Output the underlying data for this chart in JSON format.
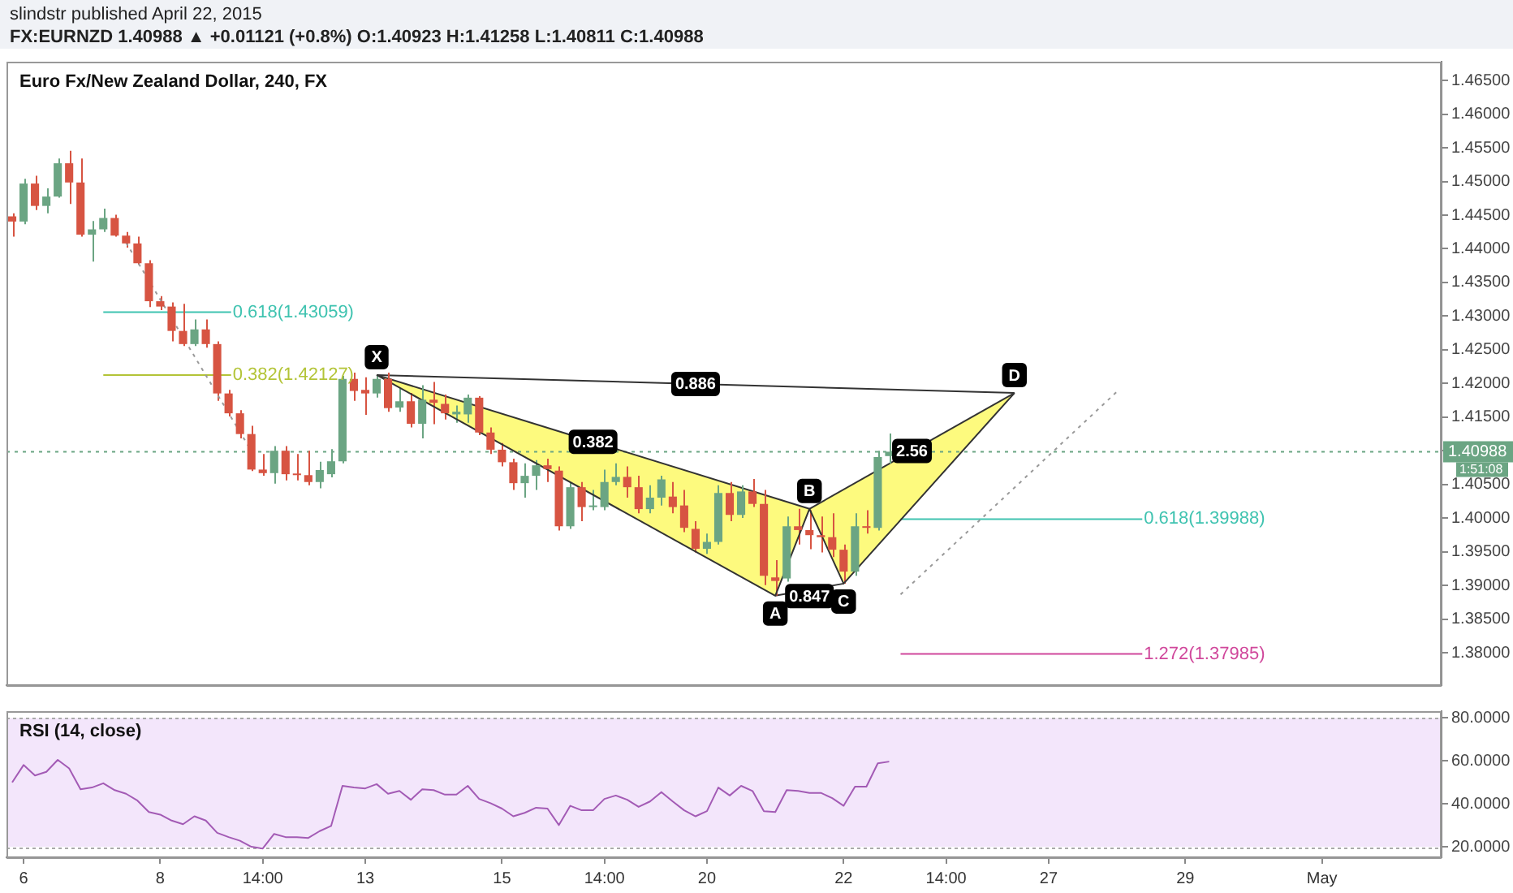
{
  "chart_data": [
    {
      "type": "candlestick",
      "title": "Euro Fx/New Zealand Dollar, 240, FX",
      "subtitle": "FX:EURNZD 1.40988 ▲ +0.01121 (+0.8%) O:1.40923 H:1.41258 L:1.40811 C:1.40988",
      "annotations": [
        "slindstr published April 22, 2015",
        "1:51:08",
        {
          "text": "X",
          "y": 1.42127
        },
        {
          "text": "A",
          "y": 1.3885
        },
        {
          "text": "B",
          "y": 1.4014
        },
        {
          "text": "C",
          "y": 1.3903
        },
        {
          "text": "D",
          "y": 1.4186
        },
        "0.886",
        "0.382",
        "0.847",
        "2.56"
      ],
      "categories": [
        null,
        null,
        null,
        null,
        null,
        null,
        null,
        null,
        null,
        null,
        null,
        null,
        null,
        null,
        null,
        null,
        null,
        null,
        null,
        null,
        null,
        null,
        null,
        null,
        null,
        null,
        null,
        null,
        null,
        null,
        null,
        null,
        null,
        null,
        null,
        null,
        null,
        null,
        null,
        null,
        null,
        null,
        null,
        null,
        null,
        null,
        null,
        null,
        null,
        null,
        null,
        null,
        null,
        null,
        null,
        null,
        null,
        null,
        null,
        null,
        null,
        null,
        null,
        null,
        null,
        null,
        null,
        null,
        null,
        null,
        null,
        null,
        null,
        null,
        null,
        null,
        null,
        null,
        null,
        null,
        null,
        null,
        null,
        null,
        null,
        null,
        null,
        null,
        null,
        null,
        null,
        null,
        null,
        null,
        null,
        null,
        null,
        null,
        null,
        null,
        null,
        null,
        null,
        null,
        null,
        null,
        null,
        null,
        null,
        null,
        null,
        null,
        null,
        null,
        null,
        null,
        null,
        null,
        null,
        null,
        null,
        null,
        null,
        null,
        null,
        null
      ],
      "ohlc": [
        [
          1.44482,
          1.44528,
          1.4418,
          1.44405
        ],
        [
          1.44405,
          1.45038,
          1.44366,
          1.44969
        ],
        [
          1.44969,
          1.45085,
          1.44574,
          1.44637
        ],
        [
          1.44637,
          1.44899,
          1.44528,
          1.44776
        ],
        [
          1.44776,
          1.4534,
          1.4476,
          1.4527
        ],
        [
          1.4527,
          1.45456,
          1.44667,
          1.44985
        ],
        [
          1.44985,
          1.4534,
          1.4418,
          1.4421
        ],
        [
          1.4421,
          1.44412,
          1.43809,
          1.44289
        ],
        [
          1.44289,
          1.44598,
          1.4425,
          1.44458
        ],
        [
          1.44458,
          1.44505,
          1.4418,
          1.44196
        ],
        [
          1.44196,
          1.4425,
          1.44018,
          1.4408
        ],
        [
          1.4408,
          1.4418,
          1.43762,
          1.43786
        ],
        [
          1.43786,
          1.43832,
          1.43136,
          1.43222
        ],
        [
          1.43222,
          1.43298,
          1.4309,
          1.43143
        ],
        [
          1.43143,
          1.43206,
          1.42626,
          1.42781
        ],
        [
          1.42781,
          1.43182,
          1.42556,
          1.42586
        ],
        [
          1.42586,
          1.4295,
          1.42556,
          1.42804
        ],
        [
          1.42804,
          1.4295,
          1.42533,
          1.42586
        ],
        [
          1.42586,
          1.42626,
          1.41744,
          1.41853
        ],
        [
          1.41853,
          1.41906,
          1.41512,
          1.41558
        ],
        [
          1.41558,
          1.41605,
          1.41187,
          1.4125
        ],
        [
          1.4125,
          1.41373,
          1.407,
          1.40723
        ],
        [
          1.40723,
          1.40955,
          1.4063,
          1.4067
        ],
        [
          1.4067,
          1.41071,
          1.40514,
          1.41002
        ],
        [
          1.41002,
          1.41071,
          1.40561,
          1.40654
        ],
        [
          1.40654,
          1.40955,
          1.40561,
          1.4064
        ],
        [
          1.4064,
          1.41002,
          1.40491,
          1.40538
        ],
        [
          1.40538,
          1.40839,
          1.40445,
          1.40716
        ],
        [
          1.40654,
          1.41025,
          1.40607,
          1.40846
        ],
        [
          1.40846,
          1.42115,
          1.40816,
          1.42069
        ],
        [
          1.42069,
          1.42162,
          1.41744,
          1.4189
        ],
        [
          1.41906,
          1.42092,
          1.41535,
          1.41853
        ],
        [
          1.41853,
          1.42127,
          1.4179,
          1.42069
        ],
        [
          1.42069,
          1.42162,
          1.41582,
          1.41635
        ],
        [
          1.41644,
          1.4193,
          1.41582,
          1.41737
        ],
        [
          1.41737,
          1.4186,
          1.4135,
          1.41403
        ],
        [
          1.41403,
          1.41976,
          1.41187,
          1.4176
        ],
        [
          1.4176,
          1.42022,
          1.41396,
          1.41714
        ],
        [
          1.41698,
          1.41837,
          1.41466,
          1.41558
        ],
        [
          1.41542,
          1.41674,
          1.41419,
          1.41582
        ],
        [
          1.41542,
          1.41837,
          1.41419,
          1.4179
        ],
        [
          1.4179,
          1.41814,
          1.41234,
          1.41273
        ],
        [
          1.41273,
          1.4135,
          1.40955,
          1.41018
        ],
        [
          1.41018,
          1.41118,
          1.4077,
          1.40832
        ],
        [
          1.40832,
          1.40886,
          1.40422,
          1.40521
        ],
        [
          1.40521,
          1.40816,
          1.40306,
          1.4063
        ],
        [
          1.4063,
          1.40862,
          1.40422,
          1.40786
        ],
        [
          1.40786,
          1.40886,
          1.40538,
          1.4073
        ],
        [
          1.40707,
          1.4077,
          1.39818,
          1.39881
        ],
        [
          1.39881,
          1.40538,
          1.39842,
          1.40461
        ],
        [
          1.40461,
          1.40538,
          1.39958,
          1.40166
        ],
        [
          1.40166,
          1.40422,
          1.4012,
          1.4017
        ],
        [
          1.40166,
          1.40723,
          1.4012,
          1.40538
        ],
        [
          1.40538,
          1.40816,
          1.40491,
          1.40614
        ],
        [
          1.40614,
          1.4077,
          1.40306,
          1.40461
        ],
        [
          1.40461,
          1.4063,
          1.40074,
          1.40136
        ],
        [
          1.40136,
          1.40491,
          1.40074,
          1.40306
        ],
        [
          1.40306,
          1.4063,
          1.4019,
          1.40577
        ],
        [
          1.40322,
          1.40538,
          1.40074,
          1.40166
        ],
        [
          1.4019,
          1.40422,
          1.39795,
          1.39858
        ],
        [
          1.39842,
          1.39958,
          1.39494,
          1.39547
        ],
        [
          1.39547,
          1.39772,
          1.3947,
          1.39649
        ],
        [
          1.39649,
          1.40491,
          1.3961,
          1.40375
        ],
        [
          1.40375,
          1.40538,
          1.39958,
          1.4005
        ],
        [
          1.4005,
          1.40491,
          1.40004,
          1.40398
        ],
        [
          1.40398,
          1.40584,
          1.40166,
          1.40213
        ],
        [
          1.40213,
          1.40422,
          1.39006,
          1.39146
        ],
        [
          1.39122,
          1.39378,
          1.3885,
          1.39069
        ],
        [
          1.39106,
          1.40027,
          1.3906,
          1.39881
        ],
        [
          1.39881,
          1.4014,
          1.3961,
          1.39825
        ],
        [
          1.39825,
          1.4012,
          1.3954,
          1.39749
        ],
        [
          1.39749,
          1.40027,
          1.39494,
          1.39719
        ],
        [
          1.39719,
          1.40074,
          1.39424,
          1.39533
        ],
        [
          1.39533,
          1.3961,
          1.3903,
          1.39208
        ],
        [
          1.39208,
          1.40074,
          1.39146,
          1.39881
        ],
        [
          1.39881,
          1.4012,
          1.39772,
          1.39858
        ],
        [
          1.39858,
          1.41002,
          1.39818,
          1.40909
        ],
        [
          1.40923,
          1.41258,
          1.40811,
          1.40988
        ],
        null,
        null,
        null,
        null,
        null,
        null,
        null,
        null,
        null,
        null,
        null,
        null,
        null,
        null,
        null,
        null,
        null,
        null,
        null,
        null,
        null,
        null,
        null,
        null,
        null,
        null,
        null,
        null,
        null,
        null,
        null,
        null,
        null,
        null,
        null,
        null,
        null,
        null,
        null,
        null,
        null,
        null,
        null,
        null,
        null,
        null,
        null,
        null
      ],
      "colors": [
        "#d75442",
        "#6ba583",
        "#d75442",
        "#6ba583",
        "#6ba583",
        "#d75442",
        "#d75442",
        "#6ba583",
        "#6ba583",
        "#d75442",
        "#d75442",
        "#d75442",
        "#d75442",
        "#d75442",
        "#d75442",
        "#d75442",
        "#6ba583",
        "#d75442",
        "#d75442",
        "#d75442",
        "#d75442",
        "#d75442",
        "#d75442",
        "#6ba583",
        "#d75442",
        "#d75442",
        "#d75442",
        "#6ba583",
        "#6ba583",
        "#6ba583",
        "#d75442",
        "#d75442",
        "#6ba583",
        "#d75442",
        "#6ba583",
        "#d75442",
        "#6ba583",
        "#d75442",
        "#d75442",
        "#6ba583",
        "#6ba583",
        "#d75442",
        "#d75442",
        "#d75442",
        "#d75442",
        "#6ba583",
        "#6ba583",
        "#d75442",
        "#d75442",
        "#6ba583",
        "#d75442",
        "#6ba583",
        "#6ba583",
        "#6ba583",
        "#d75442",
        "#d75442",
        "#6ba583",
        "#6ba583",
        "#d75442",
        "#d75442",
        "#d75442",
        "#6ba583",
        "#6ba583",
        "#d75442",
        "#6ba583",
        "#d75442",
        "#d75442",
        "#d75442",
        "#6ba583",
        "#d75442",
        "#d75442",
        "#d75442",
        "#d75442",
        "#d75442",
        "#6ba583",
        "#d75442",
        "#6ba583",
        "#6ba583",
        null,
        null,
        null,
        null,
        null,
        null,
        null,
        null,
        null,
        null,
        null,
        null,
        null,
        null,
        null,
        null,
        null,
        null,
        null,
        null,
        null,
        null,
        null,
        null,
        null,
        null,
        null,
        null,
        null,
        null,
        null,
        null,
        null,
        null,
        null,
        null,
        null,
        null,
        null,
        null,
        null,
        null,
        null,
        null,
        null,
        null,
        null,
        null
      ],
      "series": [
        {
          "type": "line",
          "color": "#333333",
          "values": [
            null,
            null,
            null,
            null,
            null,
            null,
            null,
            null,
            null,
            null,
            null,
            null,
            null,
            null,
            null,
            null,
            null,
            null,
            null,
            null,
            null,
            null,
            null,
            null,
            null,
            null,
            null,
            null,
            null,
            null,
            null,
            null,
            1.42127,
            null,
            null,
            null,
            null,
            null,
            null,
            null,
            null,
            null,
            null,
            null,
            null,
            null,
            null,
            null,
            null,
            null,
            null,
            null,
            null,
            null,
            null,
            null,
            null,
            null,
            null,
            null,
            null,
            null,
            null,
            null,
            null,
            null,
            null,
            1.3885,
            null,
            null,
            1.4014,
            null,
            null,
            1.3903,
            null,
            null,
            null,
            null,
            null,
            null,
            null,
            null,
            null,
            null,
            null,
            null,
            null,
            null,
            1.4186,
            null,
            null,
            null,
            null,
            null,
            null,
            null,
            null,
            null,
            null,
            null,
            null,
            null,
            null,
            null,
            null,
            null,
            null,
            null,
            null,
            null,
            null,
            null,
            null,
            null,
            null,
            null,
            null,
            null,
            null,
            null,
            null,
            null,
            null,
            null,
            null,
            null
          ]
        },
        {
          "type": "line",
          "color": "#999999",
          "line_style": "dotted",
          "values": [
            null,
            null,
            null,
            null,
            null,
            null,
            null,
            null,
            null,
            null,
            1.4409,
            null,
            null,
            null,
            null,
            null,
            null,
            null,
            null,
            null,
            null,
            1.41,
            null,
            null,
            null,
            null,
            null,
            null,
            null,
            null,
            null,
            null,
            null,
            null,
            null,
            null,
            null,
            null,
            null,
            null,
            null,
            null,
            null,
            null,
            null,
            null,
            null,
            null,
            null,
            null,
            null,
            null,
            null,
            null,
            null,
            null,
            null,
            null,
            null,
            null,
            null,
            null,
            null,
            null,
            null,
            null,
            null,
            null,
            null,
            null,
            null,
            null,
            null,
            null,
            null,
            null,
            null,
            null,
            null,
            null,
            null,
            null,
            null,
            null,
            null,
            null,
            null,
            null,
            null,
            null,
            null,
            null,
            null,
            null,
            null,
            null,
            null,
            null,
            null,
            null,
            null,
            null,
            null,
            null,
            null,
            null,
            null,
            null,
            null,
            null,
            null,
            null,
            null,
            null,
            null,
            null,
            null,
            null,
            null,
            null,
            null,
            null,
            null,
            null,
            null,
            null
          ]
        },
        {
          "type": "line",
          "color": "#999999",
          "line_style": "dotted",
          "values": [
            null,
            null,
            null,
            null,
            null,
            null,
            null,
            null,
            null,
            null,
            null,
            null,
            null,
            null,
            null,
            null,
            null,
            null,
            null,
            null,
            null,
            null,
            null,
            null,
            null,
            null,
            null,
            null,
            null,
            null,
            null,
            null,
            null,
            null,
            null,
            null,
            null,
            null,
            null,
            null,
            null,
            null,
            null,
            null,
            null,
            null,
            null,
            null,
            null,
            null,
            null,
            null,
            null,
            null,
            null,
            null,
            null,
            null,
            null,
            null,
            null,
            null,
            null,
            null,
            null,
            null,
            null,
            null,
            null,
            null,
            null,
            null,
            null,
            null,
            null,
            null,
            null,
            null,
            1.3887,
            null,
            null,
            null,
            null,
            null,
            null,
            null,
            null,
            null,
            null,
            null,
            null,
            null,
            null,
            null,
            null,
            null,
            null,
            1.4188,
            null,
            null,
            null,
            null,
            null,
            null,
            null,
            null,
            null,
            null,
            null,
            null,
            null,
            null,
            null,
            null,
            null,
            null,
            null,
            null,
            null,
            null,
            null,
            null,
            null,
            null,
            null,
            null
          ]
        }
      ],
      "ref_lines": [
        {
          "axis": "y",
          "value": 1.43059,
          "label": "0.618(1.43059)",
          "color": "#3fc3b0"
        },
        {
          "axis": "y",
          "value": 1.42127,
          "label": "0.382(1.42127)",
          "color": "#b3c437"
        },
        {
          "axis": "y",
          "value": 1.39988,
          "label": "0.618(1.39988)",
          "color": "#3fc3b0"
        },
        {
          "axis": "y",
          "value": 1.37985,
          "label": "1.272(1.37985)",
          "color": "#d0479b"
        },
        {
          "axis": "y",
          "value": 1.40988,
          "label": "1.40988",
          "color": "#6ba583",
          "line_style": "dotted"
        }
      ],
      "ylim": [
        1.37522,
        1.46778
      ],
      "yticks": [
        {
          "value": 1.38,
          "label": "1.38000"
        },
        {
          "value": 1.385,
          "label": "1.38500"
        },
        {
          "value": 1.39,
          "label": "1.39000"
        },
        {
          "value": 1.395,
          "label": "1.39500"
        },
        {
          "value": 1.4,
          "label": "1.40000"
        },
        {
          "value": 1.405,
          "label": "1.40500"
        },
        {
          "value": 1.41,
          "label": null
        },
        {
          "value": 1.415,
          "label": "1.41500"
        },
        {
          "value": 1.42,
          "label": "1.42000"
        },
        {
          "value": 1.425,
          "label": "1.42500"
        },
        {
          "value": 1.43,
          "label": "1.43000"
        },
        {
          "value": 1.435,
          "label": "1.43500"
        },
        {
          "value": 1.44,
          "label": "1.44000"
        },
        {
          "value": 1.445,
          "label": "1.44500"
        },
        {
          "value": 1.45,
          "label": "1.45000"
        },
        {
          "value": 1.455,
          "label": "1.45500"
        },
        {
          "value": 1.46,
          "label": "1.46000"
        },
        {
          "value": 1.465,
          "label": "1.46500"
        }
      ],
      "tick_labels": "y"
    },
    {
      "type": "line",
      "title": "RSI (14, close)",
      "categories": [
        null,
        "6",
        null,
        null,
        null,
        null,
        null,
        null,
        null,
        null,
        null,
        null,
        null,
        "8",
        null,
        null,
        null,
        null,
        null,
        null,
        null,
        null,
        "14:00",
        null,
        null,
        null,
        null,
        null,
        null,
        null,
        null,
        "13",
        null,
        null,
        null,
        null,
        null,
        null,
        null,
        null,
        null,
        null,
        null,
        "15",
        null,
        null,
        null,
        null,
        null,
        null,
        null,
        null,
        "14:00",
        null,
        null,
        null,
        null,
        null,
        null,
        null,
        null,
        "20",
        null,
        null,
        null,
        null,
        null,
        null,
        null,
        null,
        null,
        null,
        null,
        "22",
        null,
        null,
        null,
        null,
        null,
        null,
        null,
        null,
        "14:00",
        null,
        null,
        null,
        null,
        null,
        null,
        null,
        null,
        "27",
        null,
        null,
        null,
        null,
        null,
        null,
        null,
        null,
        null,
        null,
        null,
        "29",
        null,
        null,
        null,
        null,
        null,
        null,
        null,
        null,
        null,
        null,
        null,
        "May",
        null,
        null,
        null,
        null,
        null,
        null,
        null,
        null,
        null,
        null
      ],
      "series": [
        {
          "type": "line",
          "color": "#a35bb5",
          "values": [
            50,
            58.1,
            53.2,
            54.9,
            60.5,
            56.5,
            46.8,
            47.6,
            49.6,
            46.4,
            44.7,
            41.5,
            36.2,
            35,
            32.2,
            30.5,
            34.2,
            32.2,
            26.5,
            24.5,
            22.8,
            20,
            19.2,
            26,
            24.5,
            24.5,
            24.1,
            27.3,
            29.7,
            48.4,
            47.6,
            47.2,
            49.2,
            44.7,
            46,
            41.9,
            46.8,
            46.4,
            44.3,
            44.3,
            48.4,
            42.3,
            40.3,
            37.8,
            34.2,
            35.8,
            38.2,
            37.8,
            30.1,
            39.1,
            37,
            37,
            42.3,
            43.9,
            41.9,
            38.6,
            41.1,
            45.5,
            41.1,
            37,
            34.2,
            36.6,
            47.6,
            43.9,
            48.4,
            46,
            36.6,
            36.2,
            46.4,
            46,
            45.1,
            45.1,
            42.7,
            39.1,
            48,
            48,
            58.9,
            59.7,
            null,
            null,
            null,
            null,
            null,
            null,
            null,
            null,
            null,
            null,
            null,
            null,
            null,
            null,
            null,
            null,
            null,
            null,
            null,
            null,
            null,
            null,
            null,
            null,
            null,
            null,
            null,
            null,
            null,
            null,
            null,
            null,
            null,
            null,
            null,
            null,
            null,
            null,
            null,
            null,
            null,
            null,
            null,
            null,
            null,
            null,
            null,
            null
          ]
        }
      ],
      "bands": [
        {
          "axis": "y",
          "from": 20,
          "to": 80,
          "color": "#f3e6fb"
        }
      ],
      "ylim": [
        15.1,
        83.2
      ],
      "yticks": [
        {
          "value": 20,
          "label": "20.0000"
        },
        {
          "value": 40,
          "label": "40.0000"
        },
        {
          "value": 60,
          "label": "60.0000"
        },
        {
          "value": 80,
          "label": "80.0000"
        }
      ]
    }
  ]
}
